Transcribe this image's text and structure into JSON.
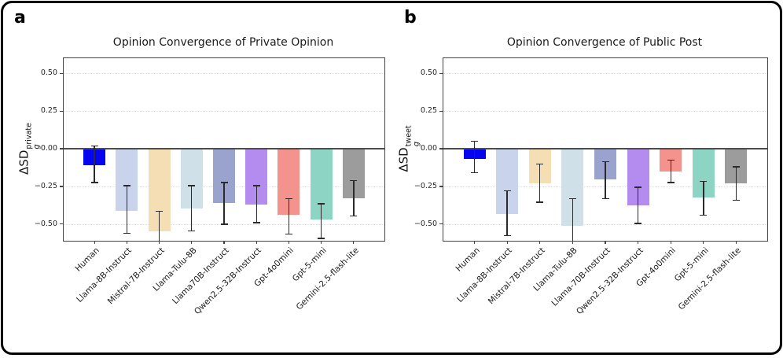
{
  "chart_data": [
    {
      "type": "bar",
      "panel_letter": "a",
      "title": "Opinion Convergence of Private Opinion",
      "ylabel": {
        "prefix": "ΔSD",
        "sub": "g",
        "sup": "private"
      },
      "categories": [
        "Human",
        "Llama-8B-Instruct",
        "Mistral-7B-Instruct",
        "Llama-Tulu-8B",
        "Llama70B-Instruct",
        "Qwen2.5-32B-Instruct",
        "Gpt-4o0mini",
        "Gpt-5-mini",
        "Gemini-2.5-flash-lite"
      ],
      "values": [
        -0.11,
        -0.41,
        -0.545,
        -0.395,
        -0.36,
        -0.37,
        -0.44,
        -0.47,
        -0.33
      ],
      "err_high": [
        0.02,
        -0.245,
        -0.415,
        -0.245,
        -0.225,
        -0.245,
        -0.33,
        -0.365,
        -0.21
      ],
      "err_low": [
        -0.225,
        -0.56,
        -0.675,
        -0.545,
        -0.5,
        -0.49,
        -0.565,
        -0.595,
        -0.445
      ],
      "colors": [
        "#0404f0",
        "#c9d3ec",
        "#f5deb3",
        "#cfe0e8",
        "#99a3cd",
        "#b48cf0",
        "#f4938d",
        "#8dd4c4",
        "#9c9c9c"
      ],
      "ylim": [
        -0.61,
        0.6
      ],
      "ytick_values": [
        0.5,
        0.25,
        0.0,
        -0.25,
        -0.5
      ],
      "ytick_labels": [
        "0.50",
        "0.25",
        "0.00",
        "−0.25",
        "−0.50"
      ],
      "grid": "dotted horizontal at ±0.25 and ±0.50",
      "zero_line": true,
      "legend": "none"
    },
    {
      "type": "bar",
      "panel_letter": "b",
      "title": "Opinion Convergence of Public Post",
      "ylabel": {
        "prefix": "ΔSD",
        "sub": "g",
        "sup": "tweet"
      },
      "categories": [
        "Human",
        "Llama-8B-Instruct",
        "Mistral-7B-Instruct",
        "Llama-Tulu-8B",
        "Llama-70B-Instruct",
        "Qwen2.5-32B-Instruct",
        "Gpt-4o0mini",
        "Gpt-5-mini",
        "Gemini-2.5-flash-lite"
      ],
      "values": [
        -0.07,
        -0.435,
        -0.23,
        -0.51,
        -0.205,
        -0.375,
        -0.15,
        -0.325,
        -0.23
      ],
      "err_high": [
        0.05,
        -0.28,
        -0.1,
        -0.33,
        -0.085,
        -0.255,
        -0.075,
        -0.215,
        -0.12
      ],
      "err_low": [
        -0.16,
        -0.575,
        -0.355,
        -0.69,
        -0.33,
        -0.495,
        -0.225,
        -0.44,
        -0.34
      ],
      "colors": [
        "#0404f0",
        "#c9d3ec",
        "#f5deb3",
        "#cfe0e8",
        "#99a3cd",
        "#b48cf0",
        "#f4938d",
        "#8dd4c4",
        "#9c9c9c"
      ],
      "ylim": [
        -0.61,
        0.6
      ],
      "ytick_values": [
        0.5,
        0.25,
        0.0,
        -0.25,
        -0.5
      ],
      "ytick_labels": [
        "0.50",
        "0.25",
        "0.00",
        "−0.25",
        "−0.50"
      ],
      "grid": "dotted horizontal at ±0.25 and ±0.50",
      "zero_line": true,
      "legend": "none"
    }
  ]
}
